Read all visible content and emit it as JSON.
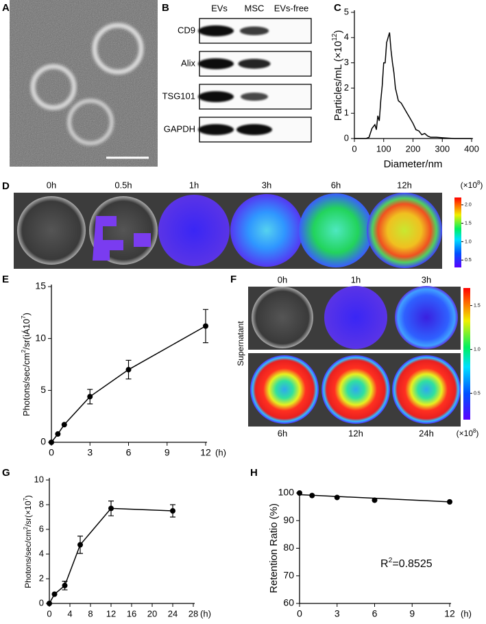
{
  "images": {
    "A": {
      "panel": "A"
    },
    "B": {
      "panel": "B",
      "columns": [
        "EVs",
        "MSC",
        "EVs-free"
      ],
      "rows": [
        "CD9",
        "Alix",
        "TSG101",
        "GAPDH"
      ]
    },
    "D": {
      "panel": "D",
      "labels": [
        "0h",
        "0.5h",
        "1h",
        "3h",
        "6h",
        "12h"
      ],
      "colorbar": {
        "label_parts": [
          "(×10",
          "8",
          ")"
        ],
        "lim": [
          0.3,
          2.2
        ],
        "ticks": [
          {
            "value": 2.0,
            "label": "2.0"
          },
          {
            "value": 1.5,
            "label": "1.5"
          },
          {
            "value": 1.0,
            "label": "1.0"
          },
          {
            "value": 0.5,
            "label": "0.5"
          }
        ]
      }
    },
    "F": {
      "panel": "F",
      "top_labels": [
        "0h",
        "1h",
        "3h"
      ],
      "bottom_labels": [
        "6h",
        "12h",
        "24h"
      ],
      "side_label": "Supernatant",
      "colorbar": {
        "label_parts": [
          "(×10",
          "8",
          ")"
        ],
        "lim": [
          0.2,
          1.7
        ],
        "ticks": [
          {
            "value": 1.5,
            "label": "1.5"
          },
          {
            "value": 1.0,
            "label": "1.0"
          },
          {
            "value": 0.5,
            "label": "0.5"
          }
        ]
      }
    }
  },
  "chart_data": [
    {
      "type": "line",
      "panel": "C",
      "xlabel": "Diameter/nm",
      "ylabel_parts": [
        "Particles/mL  (×10",
        "12",
        ")"
      ],
      "x": [
        0,
        40,
        50,
        60,
        70,
        75,
        80,
        85,
        90,
        95,
        100,
        105,
        110,
        115,
        120,
        125,
        130,
        135,
        140,
        150,
        160,
        170,
        180,
        190,
        200,
        210,
        220,
        230,
        240,
        250,
        260,
        280,
        300,
        340,
        400
      ],
      "values": [
        0,
        0,
        0.05,
        0.4,
        0.55,
        0.35,
        0.9,
        0.7,
        1.5,
        2.1,
        3.0,
        3.0,
        3.8,
        4.0,
        4.2,
        3.5,
        3.0,
        2.6,
        2.0,
        1.5,
        1.4,
        1.2,
        1.0,
        0.8,
        0.6,
        0.35,
        0.3,
        0.15,
        0.2,
        0.1,
        0.05,
        0.05,
        0.03,
        0,
        0
      ],
      "xlim": [
        0,
        400
      ],
      "xticks": [
        0,
        100,
        200,
        300,
        400
      ],
      "ylim": [
        0,
        5
      ],
      "yticks": [
        0,
        1,
        2,
        3,
        4,
        5
      ],
      "color": "#000000",
      "markers": false
    },
    {
      "type": "line",
      "panel": "E",
      "x_unit": "(h)",
      "ylabel_parts": [
        "Photons/sec/cm",
        "2",
        "/sr(iÁ10",
        "7",
        ")"
      ],
      "x": [
        0,
        0.5,
        1,
        3,
        6,
        12
      ],
      "values": [
        0,
        0.8,
        1.7,
        4.4,
        7.0,
        11.2
      ],
      "errors": [
        null,
        null,
        null,
        0.7,
        0.9,
        1.6
      ],
      "xlim": [
        0,
        12
      ],
      "xticks": [
        0,
        3,
        6,
        9,
        12
      ],
      "ylim": [
        0,
        15
      ],
      "yticks": [
        0,
        5,
        10,
        15
      ],
      "color": "#000000",
      "markers": true
    },
    {
      "type": "line",
      "panel": "G",
      "x_unit": "(h)",
      "ylabel_parts": [
        "Photons/sec/cm",
        "2",
        "/sr(×10",
        "7",
        ")"
      ],
      "x": [
        0,
        1,
        3,
        6,
        12,
        24
      ],
      "values": [
        0,
        0.75,
        1.45,
        4.75,
        7.7,
        7.5
      ],
      "errors": [
        null,
        null,
        0.35,
        0.7,
        0.6,
        0.5
      ],
      "xlim": [
        0,
        28
      ],
      "xticks": [
        0,
        4,
        8,
        12,
        16,
        20,
        24,
        28
      ],
      "ylim": [
        0,
        10
      ],
      "yticks": [
        0,
        2,
        4,
        6,
        8,
        10
      ],
      "color": "#000000",
      "markers": true
    },
    {
      "type": "scatter",
      "panel": "H",
      "x_unit": "(h)",
      "ylabel_parts": [
        "Retention Ratio (%)"
      ],
      "annotation_parts": [
        "R",
        "2",
        "=0.8525"
      ],
      "x": [
        0,
        1,
        3,
        6,
        12
      ],
      "values": [
        100,
        99.1,
        98.4,
        97.4,
        96.8
      ],
      "trendline": {
        "x": [
          0,
          12
        ],
        "values": [
          99.4,
          96.8
        ]
      },
      "xlim": [
        0,
        12
      ],
      "xticks": [
        0,
        3,
        6,
        9,
        12
      ],
      "ylim": [
        60,
        100
      ],
      "yticks": [
        60,
        70,
        80,
        90,
        100
      ],
      "color": "#000000",
      "markers": true
    }
  ]
}
